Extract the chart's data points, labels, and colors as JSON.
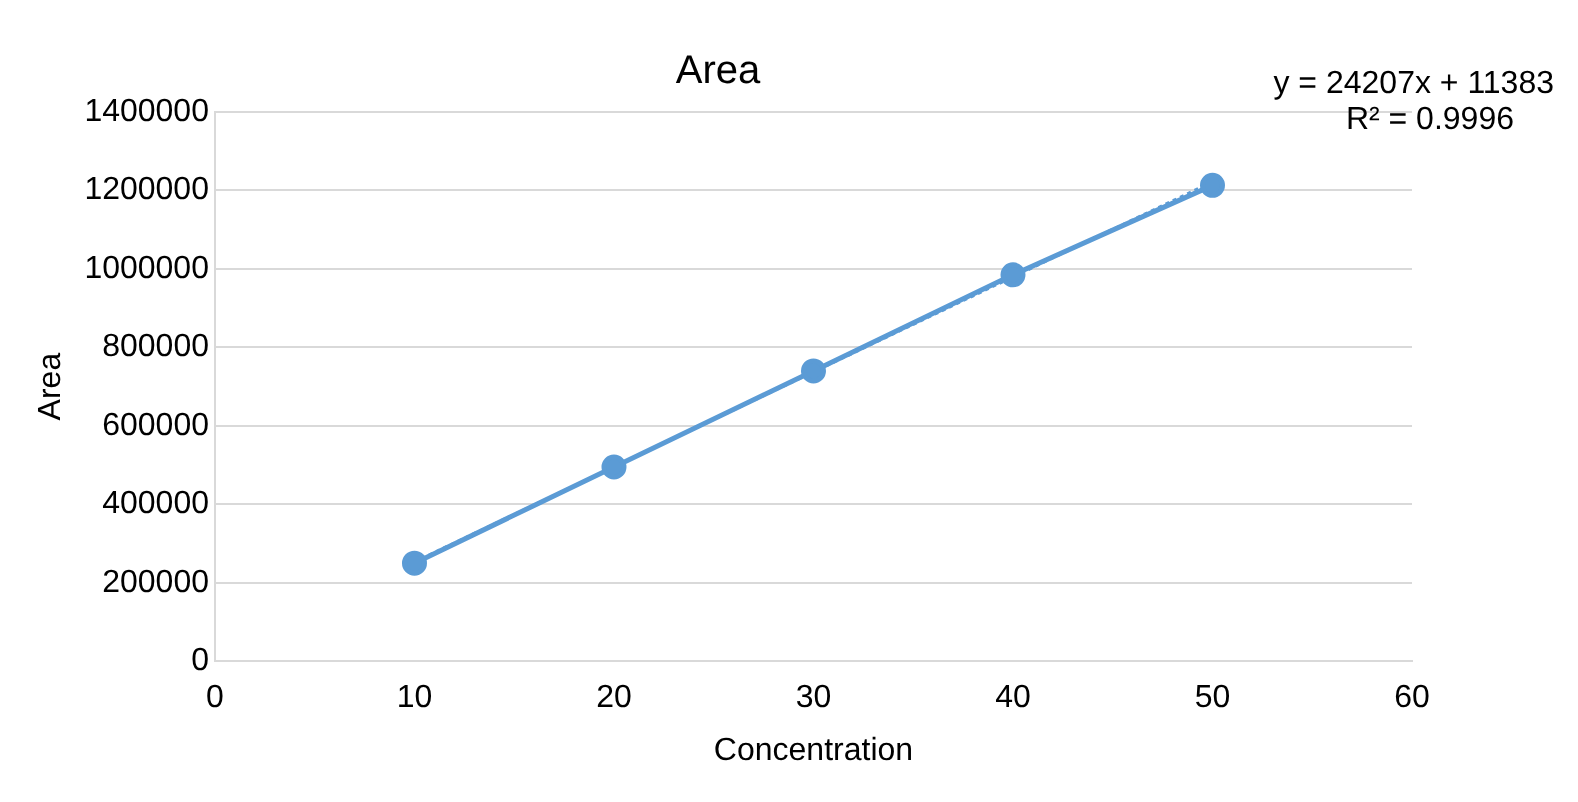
{
  "chart_data": {
    "type": "scatter",
    "title": "Area",
    "xlabel": "Concentration",
    "ylabel": "Area",
    "annotations": [
      "y = 24207x + 11383",
      "R² = 0.9996"
    ],
    "x": [
      10,
      20,
      30,
      40,
      50
    ],
    "series": [
      {
        "type": "line",
        "color": "#5b9bd5",
        "values": [
          250000,
          495000,
          740000,
          985000,
          1213000
        ],
        "marker": "circle",
        "line_style": "solid"
      },
      {
        "type": "line",
        "color": "#5b9bd5",
        "x": [
          10,
          50
        ],
        "values": [
          253000,
          1222000
        ],
        "marker": "none",
        "line_style": "dotted"
      }
    ],
    "xlim": [
      0,
      60
    ],
    "xticks": [
      0,
      10,
      20,
      30,
      40,
      50,
      60
    ],
    "ylim": [
      0,
      1400000
    ],
    "yticks": [
      0,
      200000,
      400000,
      600000,
      800000,
      1000000,
      1200000,
      1400000
    ],
    "grid": "y",
    "legend": false
  }
}
